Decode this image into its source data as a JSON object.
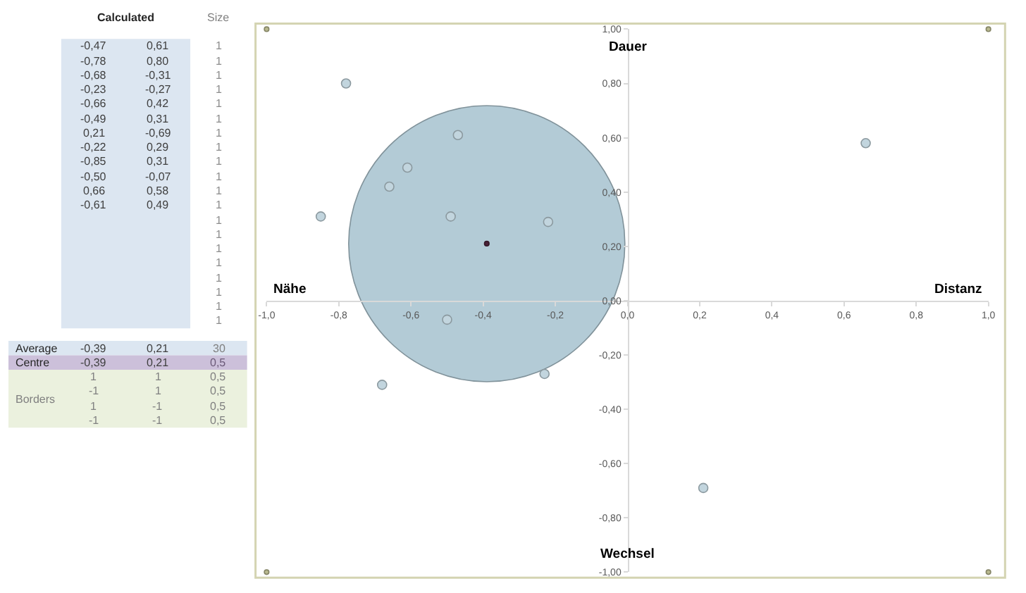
{
  "chart_data": [
    {
      "type": "other",
      "categories": [
        "Calculated",
        null,
        "Size"
      ],
      "y_categories": [
        null,
        null,
        null,
        null,
        null,
        null,
        null,
        null,
        null,
        null,
        null,
        null,
        null,
        null,
        null,
        null,
        null,
        null,
        null,
        null,
        "Average",
        "Centre",
        "Borders",
        null,
        null,
        null
      ],
      "cell_labels": [
        [
          "-0,47",
          "0,61",
          "1"
        ],
        [
          "-0,78",
          "0,80",
          "1"
        ],
        [
          "-0,68",
          "-0,31",
          "1"
        ],
        [
          "-0,23",
          "-0,27",
          "1"
        ],
        [
          "-0,66",
          "0,42",
          "1"
        ],
        [
          "-0,49",
          "0,31",
          "1"
        ],
        [
          "0,21",
          "-0,69",
          "1"
        ],
        [
          "-0,22",
          "0,29",
          "1"
        ],
        [
          "-0,85",
          "0,31",
          "1"
        ],
        [
          "-0,50",
          "-0,07",
          "1"
        ],
        [
          "0,66",
          "0,58",
          "1"
        ],
        [
          "-0,61",
          "0,49",
          "1"
        ],
        [
          null,
          null,
          "1"
        ],
        [
          null,
          null,
          "1"
        ],
        [
          null,
          null,
          "1"
        ],
        [
          null,
          null,
          "1"
        ],
        [
          null,
          null,
          "1"
        ],
        [
          null,
          null,
          "1"
        ],
        [
          null,
          null,
          "1"
        ],
        [
          null,
          null,
          "1"
        ],
        [
          "-0,39",
          "0,21",
          "30"
        ],
        [
          "-0,39",
          "0,21",
          "0,5"
        ],
        [
          "1",
          "1",
          "0,5"
        ],
        [
          "-1",
          "1",
          "0,5"
        ],
        [
          "1",
          "-1",
          "0,5"
        ],
        [
          "-1",
          "-1",
          "0,5"
        ]
      ]
    },
    {
      "type": "bubble",
      "xlim": [
        -1,
        1
      ],
      "ylim": [
        -1,
        1
      ],
      "xticks": [
        {
          "value": -1,
          "label": "-1,0"
        },
        {
          "value": -0.8,
          "label": "-0,8"
        },
        {
          "value": -0.6,
          "label": "-0,6"
        },
        {
          "value": -0.4,
          "label": "-0,4"
        },
        {
          "value": -0.2,
          "label": "-0,2"
        },
        {
          "value": 0,
          "label": "0,0"
        },
        {
          "value": 0.2,
          "label": "0,2"
        },
        {
          "value": 0.4,
          "label": "0,4"
        },
        {
          "value": 0.6,
          "label": "0,6"
        },
        {
          "value": 0.8,
          "label": "0,8"
        },
        {
          "value": 1,
          "label": "1,0"
        }
      ],
      "yticks": [
        {
          "value": -1,
          "label": "-1,00"
        },
        {
          "value": -0.8,
          "label": "-0,80"
        },
        {
          "value": -0.6,
          "label": "-0,60"
        },
        {
          "value": -0.4,
          "label": "-0,40"
        },
        {
          "value": -0.2,
          "label": "-0,20"
        },
        {
          "value": 0,
          "label": "0,00"
        },
        {
          "value": 0.2,
          "label": "0,20"
        },
        {
          "value": 0.4,
          "label": "0,40"
        },
        {
          "value": 0.6,
          "label": "0,60"
        },
        {
          "value": 0.8,
          "label": "0,80"
        },
        {
          "value": 1,
          "label": "1,00"
        }
      ],
      "annotations": [
        "Dauer",
        "Nähe",
        "Distanz",
        "Wechsel"
      ],
      "series": [
        {
          "color": "#b3cbd6",
          "x": [
            -0.39
          ],
          "values": [
            0.21
          ],
          "sizes": [
            1
          ]
        },
        {
          "color": "#c2d5de",
          "x": [
            -0.47,
            -0.78,
            -0.68,
            -0.23,
            -0.66,
            -0.49,
            0.21,
            -0.22,
            -0.85,
            -0.5,
            0.66,
            -0.61
          ],
          "values": [
            0.61,
            0.8,
            -0.31,
            -0.27,
            0.42,
            0.31,
            -0.69,
            0.29,
            0.31,
            -0.07,
            0.58,
            0.49
          ],
          "sizes": [
            0.0011,
            0.0011,
            0.0011,
            0.0011,
            0.0011,
            0.0011,
            0.0011,
            0.0011,
            0.0011,
            0.0011,
            0.0011,
            0.0011
          ]
        },
        {
          "color": "#4a2238",
          "x": [
            -0.39
          ],
          "values": [
            0.21
          ],
          "sizes": [
            0.00028
          ]
        },
        {
          "color": "#b9b98f",
          "x": [
            1,
            -1,
            1,
            -1
          ],
          "values": [
            1,
            1,
            -1,
            -1
          ],
          "sizes": [
            0.00028,
            0.00028,
            0.00028,
            0.00028
          ]
        }
      ]
    }
  ]
}
